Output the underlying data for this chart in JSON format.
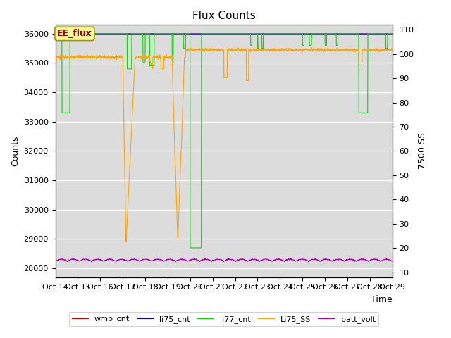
{
  "title": "Flux Counts",
  "xlabel": "Time",
  "ylabel_left": "Counts",
  "ylabel_right": "7500 SS",
  "annotation": "EE_flux",
  "background_color": "#dcdcdc",
  "ylim_left": [
    27700,
    36300
  ],
  "ylim_right": [
    8,
    112
  ],
  "yticks_left": [
    28000,
    29000,
    30000,
    31000,
    32000,
    33000,
    34000,
    35000,
    36000
  ],
  "yticks_right": [
    10,
    20,
    30,
    40,
    50,
    60,
    70,
    80,
    90,
    100,
    110
  ],
  "x_dates": [
    "Oct 14",
    "Oct 15",
    "Oct 16",
    "Oct 17",
    "Oct 18",
    "Oct 19",
    "Oct 20",
    "Oct 21",
    "Oct 22",
    "Oct 23",
    "Oct 24",
    "Oct 25",
    "Oct 26",
    "Oct 27",
    "Oct 28",
    "Oct 29"
  ],
  "legend_entries": [
    {
      "label": "wmp_cnt",
      "color": "#cc0000",
      "linestyle": "-"
    },
    {
      "label": "li75_cnt",
      "color": "#0000cc",
      "linestyle": "-"
    },
    {
      "label": "li77_cnt",
      "color": "#00dd00",
      "linestyle": "-"
    },
    {
      "label": "Li75_SS",
      "color": "#ffa500",
      "linestyle": "-"
    },
    {
      "label": "batt_volt",
      "color": "#aa00aa",
      "linestyle": "-"
    }
  ],
  "num_points": 1500,
  "figsize": [
    6.4,
    4.8
  ],
  "dpi": 100
}
